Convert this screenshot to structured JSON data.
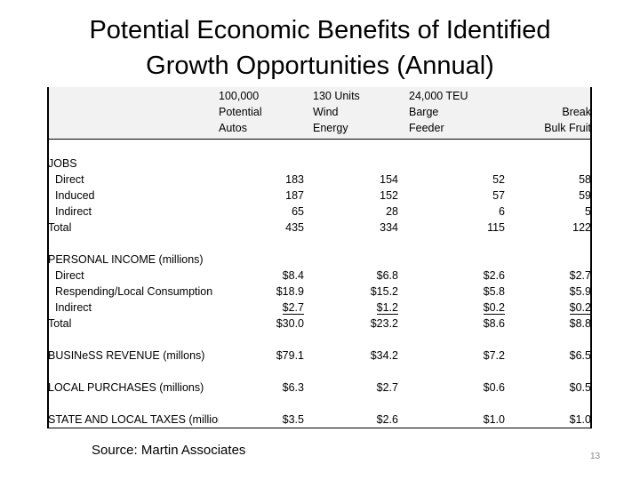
{
  "title": {
    "line1": "Potential Economic Benefits of Identified",
    "line2": "Growth Opportunities (Annual)"
  },
  "table": {
    "headers": [
      [
        "100,000",
        "Potential",
        "Autos"
      ],
      [
        "130 Units",
        "Wind",
        "Energy"
      ],
      [
        "24,000 TEU",
        "Barge",
        "Feeder"
      ],
      [
        "",
        "Break",
        "Bulk Fruit"
      ]
    ],
    "jobs": {
      "label": "JOBS",
      "rows": [
        {
          "label": "Direct",
          "values": [
            "183",
            "154",
            "52",
            "58"
          ]
        },
        {
          "label": "Induced",
          "values": [
            "187",
            "152",
            "57",
            "59"
          ]
        },
        {
          "label": "Indirect",
          "values": [
            "65",
            "28",
            "6",
            "5"
          ]
        }
      ],
      "total": {
        "label": "Total",
        "values": [
          "435",
          "334",
          "115",
          "122"
        ]
      }
    },
    "personal_income": {
      "label": "PERSONAL INCOME (millions)",
      "rows": [
        {
          "label": "Direct",
          "values": [
            "$8.4",
            "$6.8",
            "$2.6",
            "$2.7"
          ]
        },
        {
          "label": "Respending/Local Consumption",
          "values": [
            "$18.9",
            "$15.2",
            "$5.8",
            "$5.9"
          ]
        },
        {
          "label": "Indirect",
          "values": [
            "$2.7",
            "$1.2",
            "$0.2",
            "$0.2"
          ]
        }
      ],
      "total": {
        "label": "Total",
        "values": [
          "$30.0",
          "$23.2",
          "$8.6",
          "$8.8"
        ]
      }
    },
    "business_revenue": {
      "label": "BUSINeSS REVENUE  (millons)",
      "values": [
        "$79.1",
        "$34.2",
        "$7.2",
        "$6.5"
      ]
    },
    "local_purchases": {
      "label": "LOCAL PURCHASES (millions)",
      "values": [
        "$6.3",
        "$2.7",
        "$0.6",
        "$0.5"
      ]
    },
    "state_local_taxes": {
      "label": "STATE AND LOCAL TAXES (millions)",
      "values": [
        "$3.5",
        "$2.6",
        "$1.0",
        "$1.0"
      ]
    }
  },
  "source": "Source: Martin Associates",
  "page_number": "13"
}
